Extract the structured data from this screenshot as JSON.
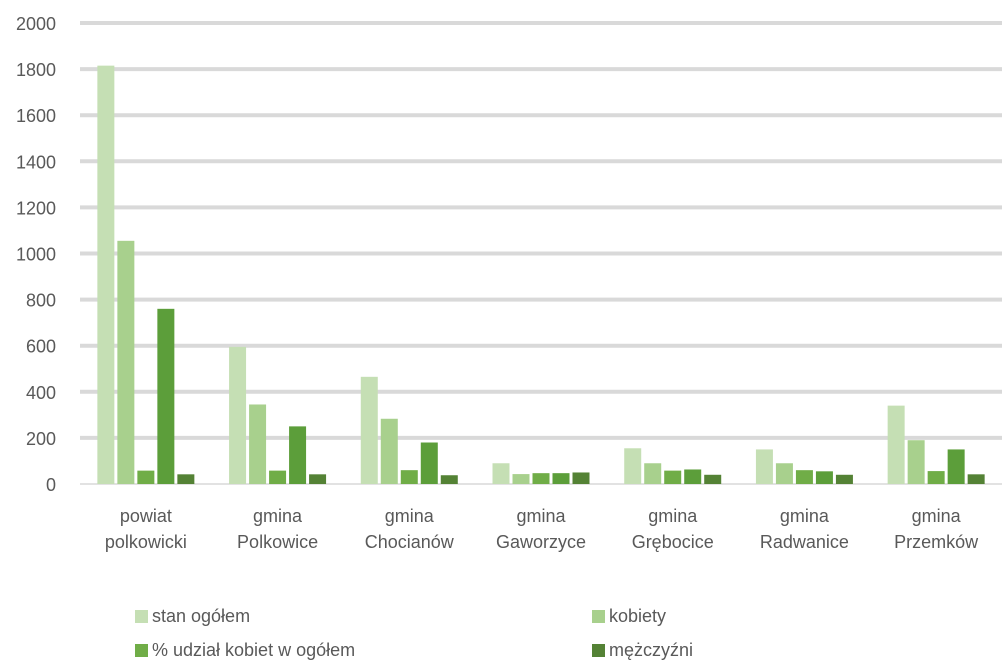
{
  "chart_data": {
    "type": "bar",
    "title": "",
    "xlabel": "",
    "ylabel": "",
    "ylim": [
      0,
      2000
    ],
    "yticks": [
      0,
      200,
      400,
      600,
      800,
      1000,
      1200,
      1400,
      1600,
      1800,
      2000
    ],
    "grid": true,
    "legend_position": "bottom",
    "categories": [
      [
        "powiat",
        "polkowicki"
      ],
      [
        "gmina",
        "Polkowice"
      ],
      [
        "gmina",
        "Chocianów"
      ],
      [
        "gmina",
        "Gaworzyce"
      ],
      [
        "gmina",
        "Grębocice"
      ],
      [
        "gmina",
        "Radwanice"
      ],
      [
        "gmina",
        "Przemków"
      ]
    ],
    "series": [
      {
        "name": "stan ogółem",
        "color": "#c5dfb4",
        "values": [
          1815,
          595,
          465,
          90,
          155,
          150,
          340
        ]
      },
      {
        "name": "kobiety",
        "color": "#a8d08d",
        "values": [
          1055,
          345,
          283,
          43,
          90,
          90,
          190
        ]
      },
      {
        "name": "% udział kobiet w ogółem",
        "color": "#70ad47",
        "values": [
          58,
          58,
          60,
          47,
          58,
          60,
          56
        ]
      },
      {
        "name": "",
        "color": "#5c9e3a",
        "values": [
          760,
          250,
          180,
          47,
          63,
          55,
          150
        ]
      },
      {
        "name": "mężczyźni",
        "color": "#548235",
        "values": [
          42,
          42,
          38,
          50,
          40,
          40,
          42
        ]
      }
    ]
  }
}
